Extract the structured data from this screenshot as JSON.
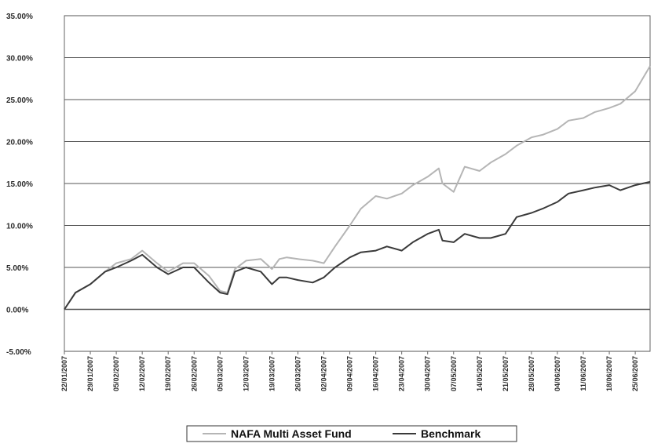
{
  "chart_data": {
    "type": "line",
    "y_unit": "%",
    "ylim": [
      -5,
      35
    ],
    "ytick_labels": [
      "35.00%",
      "30.00%",
      "25.00%",
      "20.00%",
      "15.00%",
      "10.00%",
      "5.00%",
      "0.00%",
      "-5.00%"
    ],
    "ytick_values": [
      35,
      30,
      25,
      20,
      15,
      10,
      5,
      0,
      -5
    ],
    "x_start": "22/01/2007",
    "x_end": "29/06/2007",
    "x_tick_labels": [
      "22/01/2007",
      "29/01/2007",
      "05/02/2007",
      "12/02/2007",
      "19/02/2007",
      "26/02/2007",
      "05/03/2007",
      "12/03/2007",
      "19/03/2007",
      "26/03/2007",
      "02/04/2007",
      "09/04/2007",
      "16/04/2007",
      "23/04/2007",
      "30/04/2007",
      "07/05/2007",
      "14/05/2007",
      "21/05/2007",
      "28/05/2007",
      "04/06/2007",
      "11/06/2007",
      "18/06/2007",
      "25/06/2007"
    ],
    "grid": true,
    "legend_position": "bottom",
    "colors": {
      "fund": "#b5b5b5",
      "benchmark": "#3a3a3a",
      "gridline": "#555555",
      "frame": "#666666"
    },
    "series": [
      {
        "name": "NAFA Multi Asset Fund",
        "x": [
          "2007-01-22",
          "2007-01-25",
          "2007-01-29",
          "2007-02-02",
          "2007-02-05",
          "2007-02-09",
          "2007-02-12",
          "2007-02-16",
          "2007-02-19",
          "2007-02-23",
          "2007-02-26",
          "2007-03-02",
          "2007-03-05",
          "2007-03-07",
          "2007-03-09",
          "2007-03-12",
          "2007-03-16",
          "2007-03-19",
          "2007-03-21",
          "2007-03-23",
          "2007-03-26",
          "2007-03-30",
          "2007-04-02",
          "2007-04-05",
          "2007-04-09",
          "2007-04-12",
          "2007-04-16",
          "2007-04-19",
          "2007-04-23",
          "2007-04-26",
          "2007-04-30",
          "2007-05-03",
          "2007-05-04",
          "2007-05-07",
          "2007-05-10",
          "2007-05-14",
          "2007-05-17",
          "2007-05-21",
          "2007-05-24",
          "2007-05-28",
          "2007-05-31",
          "2007-06-04",
          "2007-06-07",
          "2007-06-11",
          "2007-06-14",
          "2007-06-18",
          "2007-06-21",
          "2007-06-25",
          "2007-06-29"
        ],
        "values": [
          0.0,
          2.0,
          3.0,
          4.5,
          5.5,
          6.0,
          7.0,
          5.5,
          4.5,
          5.5,
          5.5,
          4.0,
          2.2,
          2.0,
          4.8,
          5.8,
          6.0,
          4.8,
          6.0,
          6.2,
          6.0,
          5.8,
          5.5,
          7.5,
          10.0,
          12.0,
          13.5,
          13.2,
          13.8,
          14.8,
          15.8,
          16.8,
          15.0,
          14.0,
          17.0,
          16.5,
          17.5,
          18.5,
          19.5,
          20.5,
          20.8,
          21.5,
          22.5,
          22.8,
          23.5,
          24.0,
          24.5,
          26.0,
          29.0
        ]
      },
      {
        "name": "Benchmark",
        "x": [
          "2007-01-22",
          "2007-01-25",
          "2007-01-29",
          "2007-02-02",
          "2007-02-05",
          "2007-02-09",
          "2007-02-12",
          "2007-02-16",
          "2007-02-19",
          "2007-02-23",
          "2007-02-26",
          "2007-03-02",
          "2007-03-05",
          "2007-03-07",
          "2007-03-09",
          "2007-03-12",
          "2007-03-16",
          "2007-03-19",
          "2007-03-21",
          "2007-03-23",
          "2007-03-26",
          "2007-03-30",
          "2007-04-02",
          "2007-04-05",
          "2007-04-09",
          "2007-04-12",
          "2007-04-16",
          "2007-04-19",
          "2007-04-23",
          "2007-04-26",
          "2007-04-30",
          "2007-05-03",
          "2007-05-04",
          "2007-05-07",
          "2007-05-10",
          "2007-05-14",
          "2007-05-17",
          "2007-05-21",
          "2007-05-24",
          "2007-05-28",
          "2007-05-31",
          "2007-06-04",
          "2007-06-07",
          "2007-06-11",
          "2007-06-14",
          "2007-06-18",
          "2007-06-21",
          "2007-06-25",
          "2007-06-29"
        ],
        "values": [
          0.0,
          2.0,
          3.0,
          4.5,
          5.0,
          5.8,
          6.5,
          5.0,
          4.2,
          5.0,
          5.0,
          3.2,
          2.0,
          1.8,
          4.5,
          5.0,
          4.5,
          3.0,
          3.8,
          3.8,
          3.5,
          3.2,
          3.8,
          5.0,
          6.2,
          6.8,
          7.0,
          7.5,
          7.0,
          8.0,
          9.0,
          9.5,
          8.2,
          8.0,
          9.0,
          8.5,
          8.5,
          9.0,
          11.0,
          11.5,
          12.0,
          12.8,
          13.8,
          14.2,
          14.5,
          14.8,
          14.2,
          14.8,
          15.2
        ]
      }
    ]
  }
}
